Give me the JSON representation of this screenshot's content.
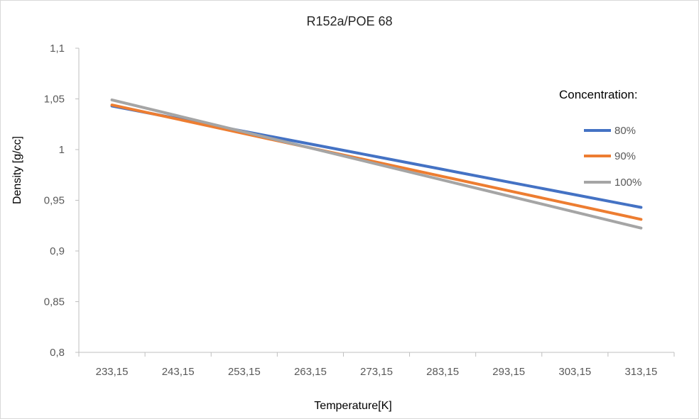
{
  "chart_data": {
    "type": "line",
    "title": "R152a/POE 68",
    "xlabel": "Temperature[K]",
    "ylabel": "Density [g/cc]",
    "categories": [
      "233,15",
      "243,15",
      "253,15",
      "263,15",
      "273,15",
      "283,15",
      "293,15",
      "303,15",
      "313,15"
    ],
    "y_ticks": [
      "0,8",
      "0,85",
      "0,9",
      "0,95",
      "1",
      "1,05",
      "1,1"
    ],
    "ylim": [
      0.8,
      1.1
    ],
    "grid": false,
    "legend_title": "Concentration:",
    "legend_position": "right",
    "series": [
      {
        "name": "80%",
        "color": "#4472C4",
        "values": [
          1.043,
          1.0305,
          1.018,
          1.0055,
          0.993,
          0.9805,
          0.968,
          0.9555,
          0.943
        ]
      },
      {
        "name": "90%",
        "color": "#ED7D31",
        "values": [
          1.044,
          1.0299,
          1.0158,
          1.0017,
          0.9876,
          0.9735,
          0.9594,
          0.9453,
          0.9312
        ]
      },
      {
        "name": "100%",
        "color": "#A5A5A5",
        "values": [
          1.049,
          1.0332,
          1.0174,
          1.0016,
          0.9858,
          0.97,
          0.9542,
          0.9384,
          0.9226
        ]
      }
    ]
  }
}
